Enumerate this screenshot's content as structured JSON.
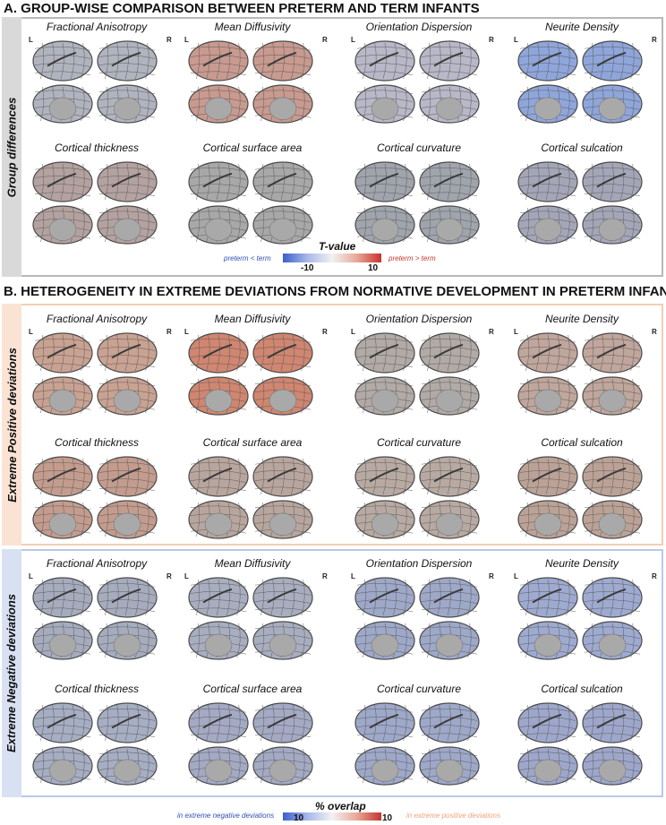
{
  "section_a": {
    "title": "A. GROUP-WISE COMPARISON BETWEEN PRETERM AND TERM INFANTS",
    "side_label": "Group differences",
    "row1_titles": [
      "Fractional Anisotropy",
      "Mean Diffusivity",
      "Orientation Dispersion",
      "Neurite Density"
    ],
    "row2_titles": [
      "Cortical thickness",
      "Cortical surface area",
      "Cortical curvature",
      "Cortical sulcation"
    ],
    "colorbar": {
      "title": "T-value",
      "min_label": "-10",
      "max_label": "10",
      "left_note": "preterm < term",
      "right_note": "preterm > term"
    }
  },
  "section_b": {
    "title": "B. HETEROGENEITY IN EXTREME DEVIATIONS FROM NORMATIVE DEVELOPMENT IN PRETERM INFANTS",
    "positive": {
      "side_label": "Extreme Positive deviations",
      "row1_titles": [
        "Fractional Anisotropy",
        "Mean Diffusivity",
        "Orientation Dispersion",
        "Neurite Density"
      ],
      "row2_titles": [
        "Cortical thickness",
        "Cortical surface area",
        "Cortical curvature",
        "Cortical sulcation"
      ]
    },
    "negative": {
      "side_label": "Extreme Negative deviations",
      "row1_titles": [
        "Fractional Anisotropy",
        "Mean Diffusivity",
        "Orientation Dispersion",
        "Neurite Density"
      ],
      "row2_titles": [
        "Cortical thickness",
        "Cortical surface area",
        "Cortical curvature",
        "Cortical sulcation"
      ]
    },
    "colorbar": {
      "title": "% overlap",
      "min_label": "10",
      "max_label": "10",
      "left_note": "in extreme negative deviations",
      "right_note": "in extreme positive deviations"
    }
  },
  "hemisphere_labels": {
    "left": "L",
    "right": "R"
  },
  "colors": {
    "panel_a_border": "#b8b8b8",
    "panel_a_side": "#d9d9d9",
    "panel_pos_border": "#f4cdb3",
    "panel_pos_side": "#fbe3d4",
    "panel_neg_border": "#b9c9e9",
    "panel_neg_side": "#d7e1f3",
    "brain_base": "#8e8e8e",
    "brain_edge": "#4a4a4a",
    "red": "#c8322f",
    "blue": "#3a5fcd",
    "blue_text": "#2f4fb5",
    "red_text": "#c0392b",
    "orange_text": "#f0a07a"
  },
  "map_tints": {
    "a1": [
      [
        "#b0b4bf",
        "#c99a8f",
        "#b8b8c8",
        "#8fa6db"
      ],
      [
        "#b4a2a0",
        "#a8a8a8",
        "#a0a4ac",
        "#a4a6b8"
      ]
    ],
    "p1": [
      [
        "#c9a292",
        "#d08670",
        "#b2aaa6",
        "#c0a69c"
      ],
      [
        "#c49c8e",
        "#b8a69e",
        "#b8aaa2",
        "#bca296"
      ]
    ],
    "n1": [
      [
        "#a6acbe",
        "#a8aebf",
        "#9ea8c8",
        "#9eaad0"
      ],
      [
        "#a6aec4",
        "#a4aac4",
        "#9ea8c9",
        "#9ea7cb"
      ]
    ]
  }
}
